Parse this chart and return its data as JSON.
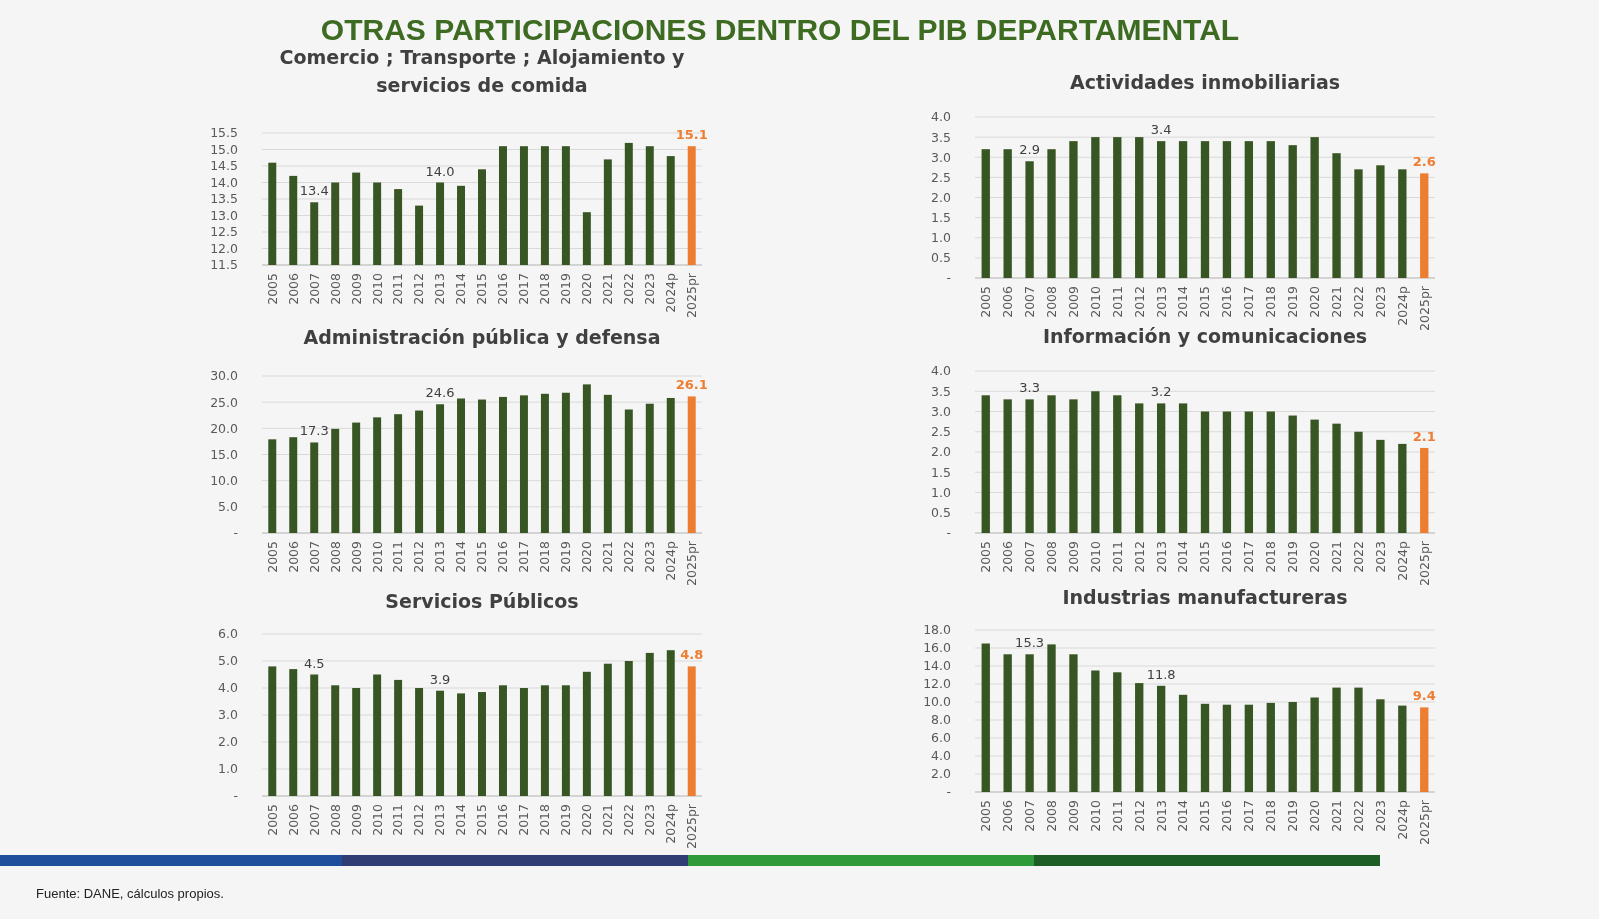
{
  "chart_data": [
    {
      "type": "other",
      "title": "OTRAS PARTICIPACIONES DENTRO DEL PIB DEPARTAMENTAL",
      "annotations": [
        "Fuente: DANE, cálculos propios."
      ]
    },
    {
      "type": "bar",
      "title": "Comercio ; Transporte ; Alojamiento y servicios de comida",
      "categories": [
        "2005",
        "2006",
        "2007",
        "2008",
        "2009",
        "2010",
        "2011",
        "2012",
        "2013",
        "2014",
        "2015",
        "2016",
        "2017",
        "2018",
        "2019",
        "2020",
        "2021",
        "2022",
        "2023",
        "2024p",
        "2025pr"
      ],
      "values": [
        14.6,
        14.2,
        13.4,
        14.0,
        14.3,
        14.0,
        13.8,
        13.3,
        14.0,
        13.9,
        14.4,
        15.1,
        15.1,
        15.1,
        15.1,
        13.1,
        14.7,
        15.2,
        15.1,
        14.8,
        15.1
      ],
      "colors": [
        "#375623",
        "#375623",
        "#375623",
        "#375623",
        "#375623",
        "#375623",
        "#375623",
        "#375623",
        "#375623",
        "#375623",
        "#375623",
        "#375623",
        "#375623",
        "#375623",
        "#375623",
        "#375623",
        "#375623",
        "#375623",
        "#375623",
        "#375623",
        "#ed7d31"
      ],
      "value_labels": [
        null,
        null,
        "13.4",
        null,
        null,
        null,
        null,
        null,
        "14.0",
        null,
        null,
        null,
        null,
        null,
        null,
        null,
        null,
        null,
        null,
        null,
        "15.1"
      ],
      "ylim": [
        11.5,
        15.5
      ],
      "yticks": [
        11.5,
        {
          "value": 12,
          "label": "12.0"
        },
        12.5,
        {
          "value": 13,
          "label": "13.0"
        },
        13.5,
        {
          "value": 14,
          "label": "14.0"
        },
        14.5,
        {
          "value": 15,
          "label": "15.0"
        },
        15.5
      ],
      "grid": "y"
    },
    {
      "type": "bar",
      "title": "Actividades inmobiliarias",
      "categories": [
        "2005",
        "2006",
        "2007",
        "2008",
        "2009",
        "2010",
        "2011",
        "2012",
        "2013",
        "2014",
        "2015",
        "2016",
        "2017",
        "2018",
        "2019",
        "2020",
        "2021",
        "2022",
        "2023",
        "2024p",
        "2025pr"
      ],
      "values": [
        3.2,
        3.2,
        2.9,
        3.2,
        3.4,
        3.5,
        3.5,
        3.5,
        3.4,
        3.4,
        3.4,
        3.4,
        3.4,
        3.4,
        3.3,
        3.5,
        3.1,
        2.7,
        2.8,
        2.7,
        2.6
      ],
      "colors": [
        "#375623",
        "#375623",
        "#375623",
        "#375623",
        "#375623",
        "#375623",
        "#375623",
        "#375623",
        "#375623",
        "#375623",
        "#375623",
        "#375623",
        "#375623",
        "#375623",
        "#375623",
        "#375623",
        "#375623",
        "#375623",
        "#375623",
        "#375623",
        "#ed7d31"
      ],
      "value_labels": [
        null,
        null,
        "2.9",
        null,
        null,
        null,
        null,
        null,
        "3.4",
        null,
        null,
        null,
        null,
        null,
        null,
        null,
        null,
        null,
        null,
        null,
        "2.6"
      ],
      "ylim": [
        0,
        4
      ],
      "yticks": [
        {
          "value": 0,
          "label": "-"
        },
        0.5,
        {
          "value": 1,
          "label": "1.0"
        },
        1.5,
        {
          "value": 2,
          "label": "2.0"
        },
        2.5,
        {
          "value": 3,
          "label": "3.0"
        },
        3.5,
        {
          "value": 4,
          "label": "4.0"
        }
      ],
      "grid": "y"
    },
    {
      "type": "bar",
      "title": "Administración pública y defensa",
      "categories": [
        "2005",
        "2006",
        "2007",
        "2008",
        "2009",
        "2010",
        "2011",
        "2012",
        "2013",
        "2014",
        "2015",
        "2016",
        "2017",
        "2018",
        "2019",
        "2020",
        "2021",
        "2022",
        "2023",
        "2024p",
        "2025pr"
      ],
      "values": [
        17.9,
        18.3,
        17.3,
        19.9,
        21.1,
        22.1,
        22.7,
        23.4,
        24.6,
        25.7,
        25.5,
        26.0,
        26.3,
        26.6,
        26.8,
        28.4,
        26.4,
        23.6,
        24.7,
        25.8,
        26.1
      ],
      "colors": [
        "#375623",
        "#375623",
        "#375623",
        "#375623",
        "#375623",
        "#375623",
        "#375623",
        "#375623",
        "#375623",
        "#375623",
        "#375623",
        "#375623",
        "#375623",
        "#375623",
        "#375623",
        "#375623",
        "#375623",
        "#375623",
        "#375623",
        "#375623",
        "#ed7d31"
      ],
      "value_labels": [
        null,
        null,
        "17.3",
        null,
        null,
        null,
        null,
        null,
        "24.6",
        null,
        null,
        null,
        null,
        null,
        null,
        null,
        null,
        null,
        null,
        null,
        "26.1"
      ],
      "ylim": [
        0,
        30
      ],
      "yticks": [
        {
          "value": 0,
          "label": "-"
        },
        {
          "value": 5,
          "label": "5.0"
        },
        {
          "value": 10,
          "label": "10.0"
        },
        {
          "value": 15,
          "label": "15.0"
        },
        {
          "value": 20,
          "label": "20.0"
        },
        {
          "value": 25,
          "label": "25.0"
        },
        {
          "value": 30,
          "label": "30.0"
        }
      ],
      "grid": "y"
    },
    {
      "type": "bar",
      "title": "Información y comunicaciones",
      "categories": [
        "2005",
        "2006",
        "2007",
        "2008",
        "2009",
        "2010",
        "2011",
        "2012",
        "2013",
        "2014",
        "2015",
        "2016",
        "2017",
        "2018",
        "2019",
        "2020",
        "2021",
        "2022",
        "2023",
        "2024p",
        "2025pr"
      ],
      "values": [
        3.4,
        3.3,
        3.3,
        3.4,
        3.3,
        3.5,
        3.4,
        3.2,
        3.2,
        3.2,
        3.0,
        3.0,
        3.0,
        3.0,
        2.9,
        2.8,
        2.7,
        2.5,
        2.3,
        2.2,
        2.1
      ],
      "colors": [
        "#375623",
        "#375623",
        "#375623",
        "#375623",
        "#375623",
        "#375623",
        "#375623",
        "#375623",
        "#375623",
        "#375623",
        "#375623",
        "#375623",
        "#375623",
        "#375623",
        "#375623",
        "#375623",
        "#375623",
        "#375623",
        "#375623",
        "#375623",
        "#ed7d31"
      ],
      "value_labels": [
        null,
        null,
        "3.3",
        null,
        null,
        null,
        null,
        null,
        "3.2",
        null,
        null,
        null,
        null,
        null,
        null,
        null,
        null,
        null,
        null,
        null,
        "2.1"
      ],
      "ylim": [
        0,
        4
      ],
      "yticks": [
        {
          "value": 0,
          "label": "-"
        },
        0.5,
        {
          "value": 1,
          "label": "1.0"
        },
        1.5,
        {
          "value": 2,
          "label": "2.0"
        },
        2.5,
        {
          "value": 3,
          "label": "3.0"
        },
        3.5,
        {
          "value": 4,
          "label": "4.0"
        }
      ],
      "grid": "y"
    },
    {
      "type": "bar",
      "title": "Servicios Públicos",
      "categories": [
        "2005",
        "2006",
        "2007",
        "2008",
        "2009",
        "2010",
        "2011",
        "2012",
        "2013",
        "2014",
        "2015",
        "2016",
        "2017",
        "2018",
        "2019",
        "2020",
        "2021",
        "2022",
        "2023",
        "2024p",
        "2025pr"
      ],
      "values": [
        4.8,
        4.7,
        4.5,
        4.1,
        4.0,
        4.5,
        4.3,
        4.0,
        3.9,
        3.8,
        3.85,
        4.1,
        4.0,
        4.1,
        4.1,
        4.6,
        4.9,
        5.0,
        5.3,
        5.4,
        4.8
      ],
      "colors": [
        "#375623",
        "#375623",
        "#375623",
        "#375623",
        "#375623",
        "#375623",
        "#375623",
        "#375623",
        "#375623",
        "#375623",
        "#375623",
        "#375623",
        "#375623",
        "#375623",
        "#375623",
        "#375623",
        "#375623",
        "#375623",
        "#375623",
        "#375623",
        "#ed7d31"
      ],
      "value_labels": [
        null,
        null,
        "4.5",
        null,
        null,
        null,
        null,
        null,
        "3.9",
        null,
        null,
        null,
        null,
        null,
        null,
        null,
        null,
        null,
        null,
        null,
        "4.8"
      ],
      "ylim": [
        0,
        6
      ],
      "yticks": [
        {
          "value": 0,
          "label": "-"
        },
        {
          "value": 1,
          "label": "1.0"
        },
        {
          "value": 2,
          "label": "2.0"
        },
        {
          "value": 3,
          "label": "3.0"
        },
        {
          "value": 4,
          "label": "4.0"
        },
        {
          "value": 5,
          "label": "5.0"
        },
        {
          "value": 6,
          "label": "6.0"
        }
      ],
      "grid": "y"
    },
    {
      "type": "bar",
      "title": "Industrias manufactureras",
      "categories": [
        "2005",
        "2006",
        "2007",
        "2008",
        "2009",
        "2010",
        "2011",
        "2012",
        "2013",
        "2014",
        "2015",
        "2016",
        "2017",
        "2018",
        "2019",
        "2020",
        "2021",
        "2022",
        "2023",
        "2024p",
        "2025pr"
      ],
      "values": [
        16.5,
        15.3,
        15.3,
        16.4,
        15.3,
        13.5,
        13.3,
        12.1,
        11.8,
        10.8,
        9.8,
        9.7,
        9.7,
        9.9,
        10.0,
        10.5,
        11.6,
        11.6,
        10.3,
        9.6,
        9.4
      ],
      "colors": [
        "#375623",
        "#375623",
        "#375623",
        "#375623",
        "#375623",
        "#375623",
        "#375623",
        "#375623",
        "#375623",
        "#375623",
        "#375623",
        "#375623",
        "#375623",
        "#375623",
        "#375623",
        "#375623",
        "#375623",
        "#375623",
        "#375623",
        "#375623",
        "#ed7d31"
      ],
      "value_labels": [
        null,
        null,
        "15.3",
        null,
        null,
        null,
        null,
        null,
        "11.8",
        null,
        null,
        null,
        null,
        null,
        null,
        null,
        null,
        null,
        null,
        null,
        "9.4"
      ],
      "ylim": [
        0,
        18
      ],
      "yticks": [
        {
          "value": 0,
          "label": "-"
        },
        {
          "value": 2,
          "label": "2.0"
        },
        {
          "value": 4,
          "label": "4.0"
        },
        {
          "value": 6,
          "label": "6.0"
        },
        {
          "value": 8,
          "label": "8.0"
        },
        {
          "value": 10,
          "label": "10.0"
        },
        {
          "value": 12,
          "label": "12.0"
        },
        {
          "value": 14,
          "label": "14.0"
        },
        {
          "value": 16,
          "label": "16.0"
        },
        {
          "value": 18,
          "label": "18.0"
        }
      ],
      "grid": "y"
    }
  ]
}
